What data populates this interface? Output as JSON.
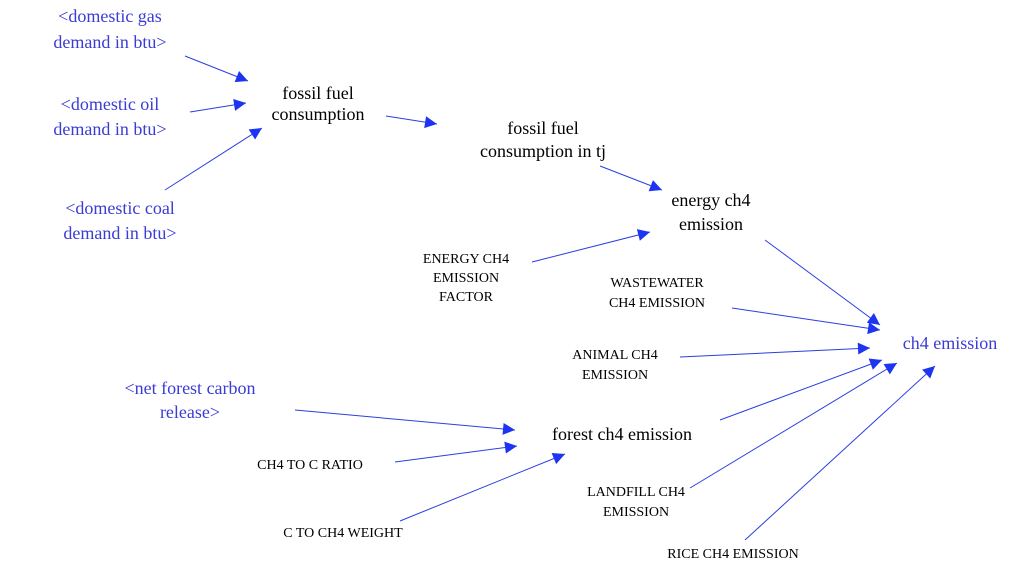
{
  "nodes": [
    {
      "lines": [
        "<domestic gas",
        "demand in btu>"
      ]
    },
    {
      "lines": [
        "<domestic oil",
        "demand in btu>"
      ]
    },
    {
      "lines": [
        "<domestic coal",
        "demand in btu>"
      ]
    },
    {
      "lines": [
        "fossil fuel",
        "consumption"
      ]
    },
    {
      "lines": [
        "fossil fuel",
        "consumption in tj"
      ]
    },
    {
      "lines": [
        "energy ch4",
        "emission"
      ]
    },
    {
      "lines": [
        "ENERGY CH4",
        "EMISSION",
        "FACTOR"
      ]
    },
    {
      "lines": [
        "WASTEWATER",
        "CH4 EMISSION"
      ]
    },
    {
      "lines": [
        "ch4 emission"
      ]
    },
    {
      "lines": [
        "ANIMAL CH4",
        "EMISSION"
      ]
    },
    {
      "lines": [
        "<net forest carbon",
        "release>"
      ]
    },
    {
      "lines": [
        "forest ch4 emission"
      ]
    },
    {
      "lines": [
        "CH4 TO C RATIO"
      ]
    },
    {
      "lines": [
        "C TO CH4 WEIGHT"
      ]
    },
    {
      "lines": [
        "LANDFILL CH4",
        "EMISSION"
      ]
    },
    {
      "lines": [
        "RICE CH4 EMISSION"
      ]
    }
  ]
}
